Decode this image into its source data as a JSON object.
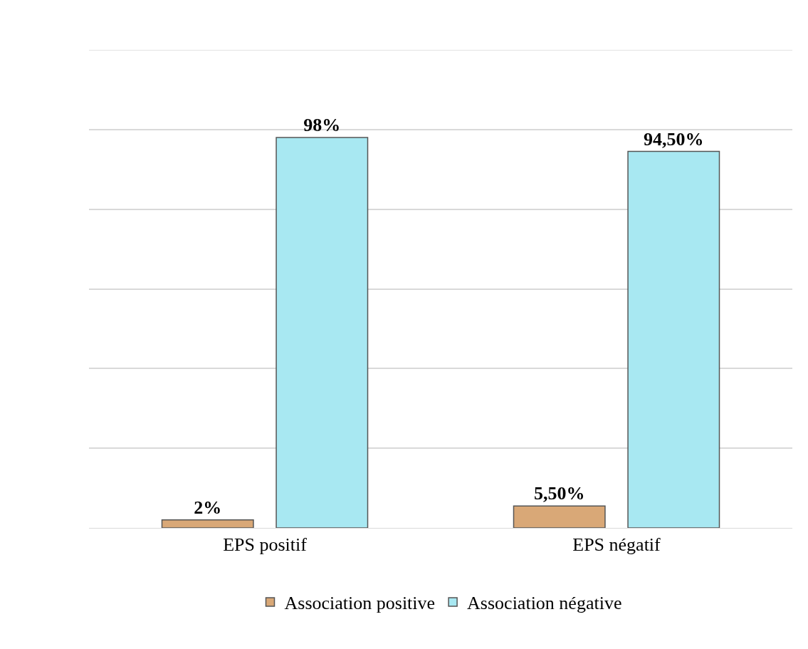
{
  "chart_data": {
    "type": "bar",
    "categories": [
      "EPS positif",
      "EPS négatif"
    ],
    "series": [
      {
        "name": "Association positive",
        "color": "#d9a877",
        "values": [
          2,
          5.5
        ],
        "value_labels": [
          "2%",
          "5,50%"
        ]
      },
      {
        "name": "Association négative",
        "color": "#a8e8f2",
        "values": [
          98,
          94.5
        ],
        "value_labels": [
          "98%",
          "94,50%"
        ]
      }
    ],
    "ylim": [
      0,
      120
    ],
    "yticks": [
      {
        "value": 0,
        "label": null
      },
      {
        "value": 20,
        "label": null
      },
      {
        "value": 40,
        "label": null
      },
      {
        "value": 60,
        "label": null
      },
      {
        "value": 80,
        "label": null
      },
      {
        "value": 100,
        "label": null
      },
      {
        "value": 120,
        "label": null
      }
    ],
    "tick_labels": "x",
    "grid": "y",
    "legend": "bottom"
  }
}
